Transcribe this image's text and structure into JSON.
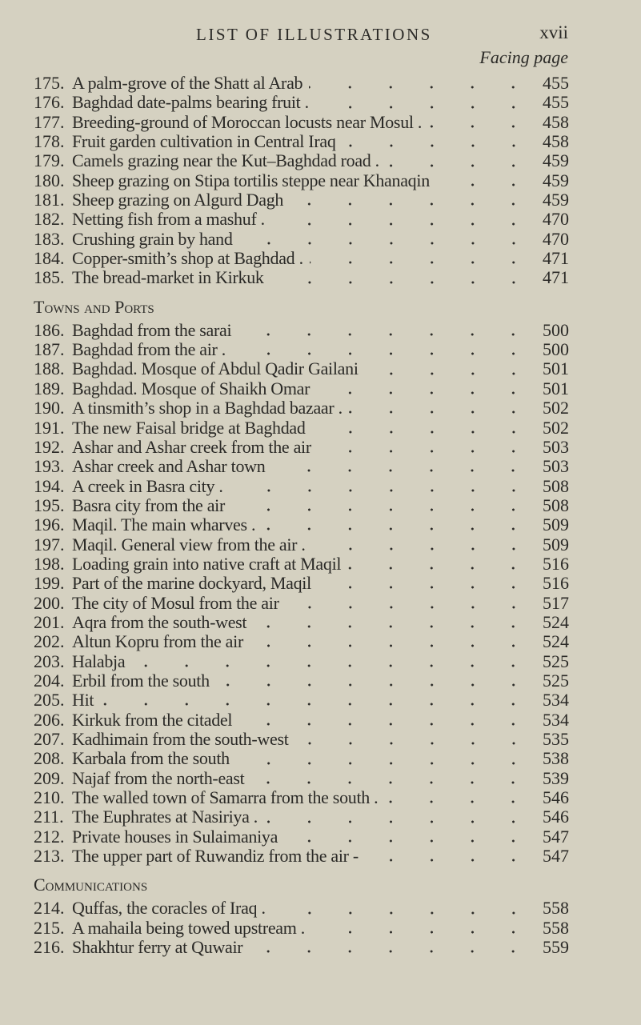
{
  "header": {
    "title": "LIST OF ILLUSTRATIONS",
    "page_number": "xvii",
    "column_label": "Facing page"
  },
  "groups": [
    {
      "heading": "",
      "items": [
        {
          "n": "175.",
          "t": "A palm-grove of the Shatt al Arab",
          "p": "455"
        },
        {
          "n": "176.",
          "t": "Baghdad date-palms bearing fruit .",
          "p": "455"
        },
        {
          "n": "177.",
          "t": "Breeding-ground of Moroccan locusts near Mosul .",
          "p": "458"
        },
        {
          "n": "178.",
          "t": "Fruit garden cultivation in Central Iraq",
          "p": "458"
        },
        {
          "n": "179.",
          "t": "Camels grazing near the Kut–Baghdad road .",
          "p": "459"
        },
        {
          "n": "180.",
          "t": "Sheep grazing on Stipa tortilis steppe near Khanaqin",
          "p": "459"
        },
        {
          "n": "181.",
          "t": "Sheep grazing on Algurd Dagh",
          "p": "459"
        },
        {
          "n": "182.",
          "t": "Netting fish from a mashuf .",
          "p": "470"
        },
        {
          "n": "183.",
          "t": "Crushing grain by hand",
          "p": "470"
        },
        {
          "n": "184.",
          "t": "Copper-smith’s shop at Baghdad .",
          "p": "471"
        },
        {
          "n": "185.",
          "t": "The bread-market in Kirkuk",
          "p": "471"
        }
      ]
    },
    {
      "heading": "Towns and Ports",
      "items": [
        {
          "n": "186.",
          "t": "Baghdad from the sarai",
          "p": "500"
        },
        {
          "n": "187.",
          "t": "Baghdad from the air .",
          "p": "500"
        },
        {
          "n": "188.",
          "t": "Baghdad. Mosque of Abdul Qadir Gailani",
          "p": "501"
        },
        {
          "n": "189.",
          "t": "Baghdad. Mosque of Shaikh Omar",
          "p": "501"
        },
        {
          "n": "190.",
          "t": "A tinsmith’s shop in a Baghdad bazaar .",
          "p": "502"
        },
        {
          "n": "191.",
          "t": "The new Faisal bridge at Baghdad",
          "p": "502"
        },
        {
          "n": "192.",
          "t": "Ashar and Ashar creek from the air",
          "p": "503"
        },
        {
          "n": "193.",
          "t": "Ashar creek and Ashar town",
          "p": "503"
        },
        {
          "n": "194.",
          "t": "A creek in Basra city .",
          "p": "508"
        },
        {
          "n": "195.",
          "t": "Basra city from the air",
          "p": "508"
        },
        {
          "n": "196.",
          "t": "Maqil. The main wharves .",
          "p": "509"
        },
        {
          "n": "197.",
          "t": "Maqil. General view from the air .",
          "p": "509"
        },
        {
          "n": "198.",
          "t": "Loading grain into native craft at Maqil",
          "p": "516"
        },
        {
          "n": "199.",
          "t": "Part of the marine dockyard, Maqil",
          "p": "516"
        },
        {
          "n": "200.",
          "t": "The city of Mosul from the air",
          "p": "517"
        },
        {
          "n": "201.",
          "t": "Aqra from the south-west",
          "p": "524"
        },
        {
          "n": "202.",
          "t": "Altun Kopru from the air",
          "p": "524"
        },
        {
          "n": "203.",
          "t": "Halabja",
          "p": "525"
        },
        {
          "n": "204.",
          "t": "Erbil from the south",
          "p": "525"
        },
        {
          "n": "205.",
          "t": "Hit",
          "p": "534"
        },
        {
          "n": "206.",
          "t": "Kirkuk from the citadel",
          "p": "534"
        },
        {
          "n": "207.",
          "t": "Kadhimain from the south-west",
          "p": "535"
        },
        {
          "n": "208.",
          "t": "Karbala from the south",
          "p": "538"
        },
        {
          "n": "209.",
          "t": "Najaf from the north-east",
          "p": "539"
        },
        {
          "n": "210.",
          "t": "The walled town of Samarra from the south .",
          "p": "546"
        },
        {
          "n": "211.",
          "t": "The Euphrates at Nasiriya .",
          "p": "546"
        },
        {
          "n": "212.",
          "t": "Private houses in Sulaimaniya",
          "p": "547"
        },
        {
          "n": "213.",
          "t": "The upper part of Ruwandiz from the air -",
          "p": "547"
        }
      ]
    },
    {
      "heading": "Communications",
      "items": [
        {
          "n": "214.",
          "t": "Quffas, the coracles of Iraq .",
          "p": "558"
        },
        {
          "n": "215.",
          "t": "A mahaila being towed upstream .",
          "p": "558"
        },
        {
          "n": "216.",
          "t": "Shakhtur ferry at Quwair",
          "p": "559"
        }
      ]
    }
  ]
}
